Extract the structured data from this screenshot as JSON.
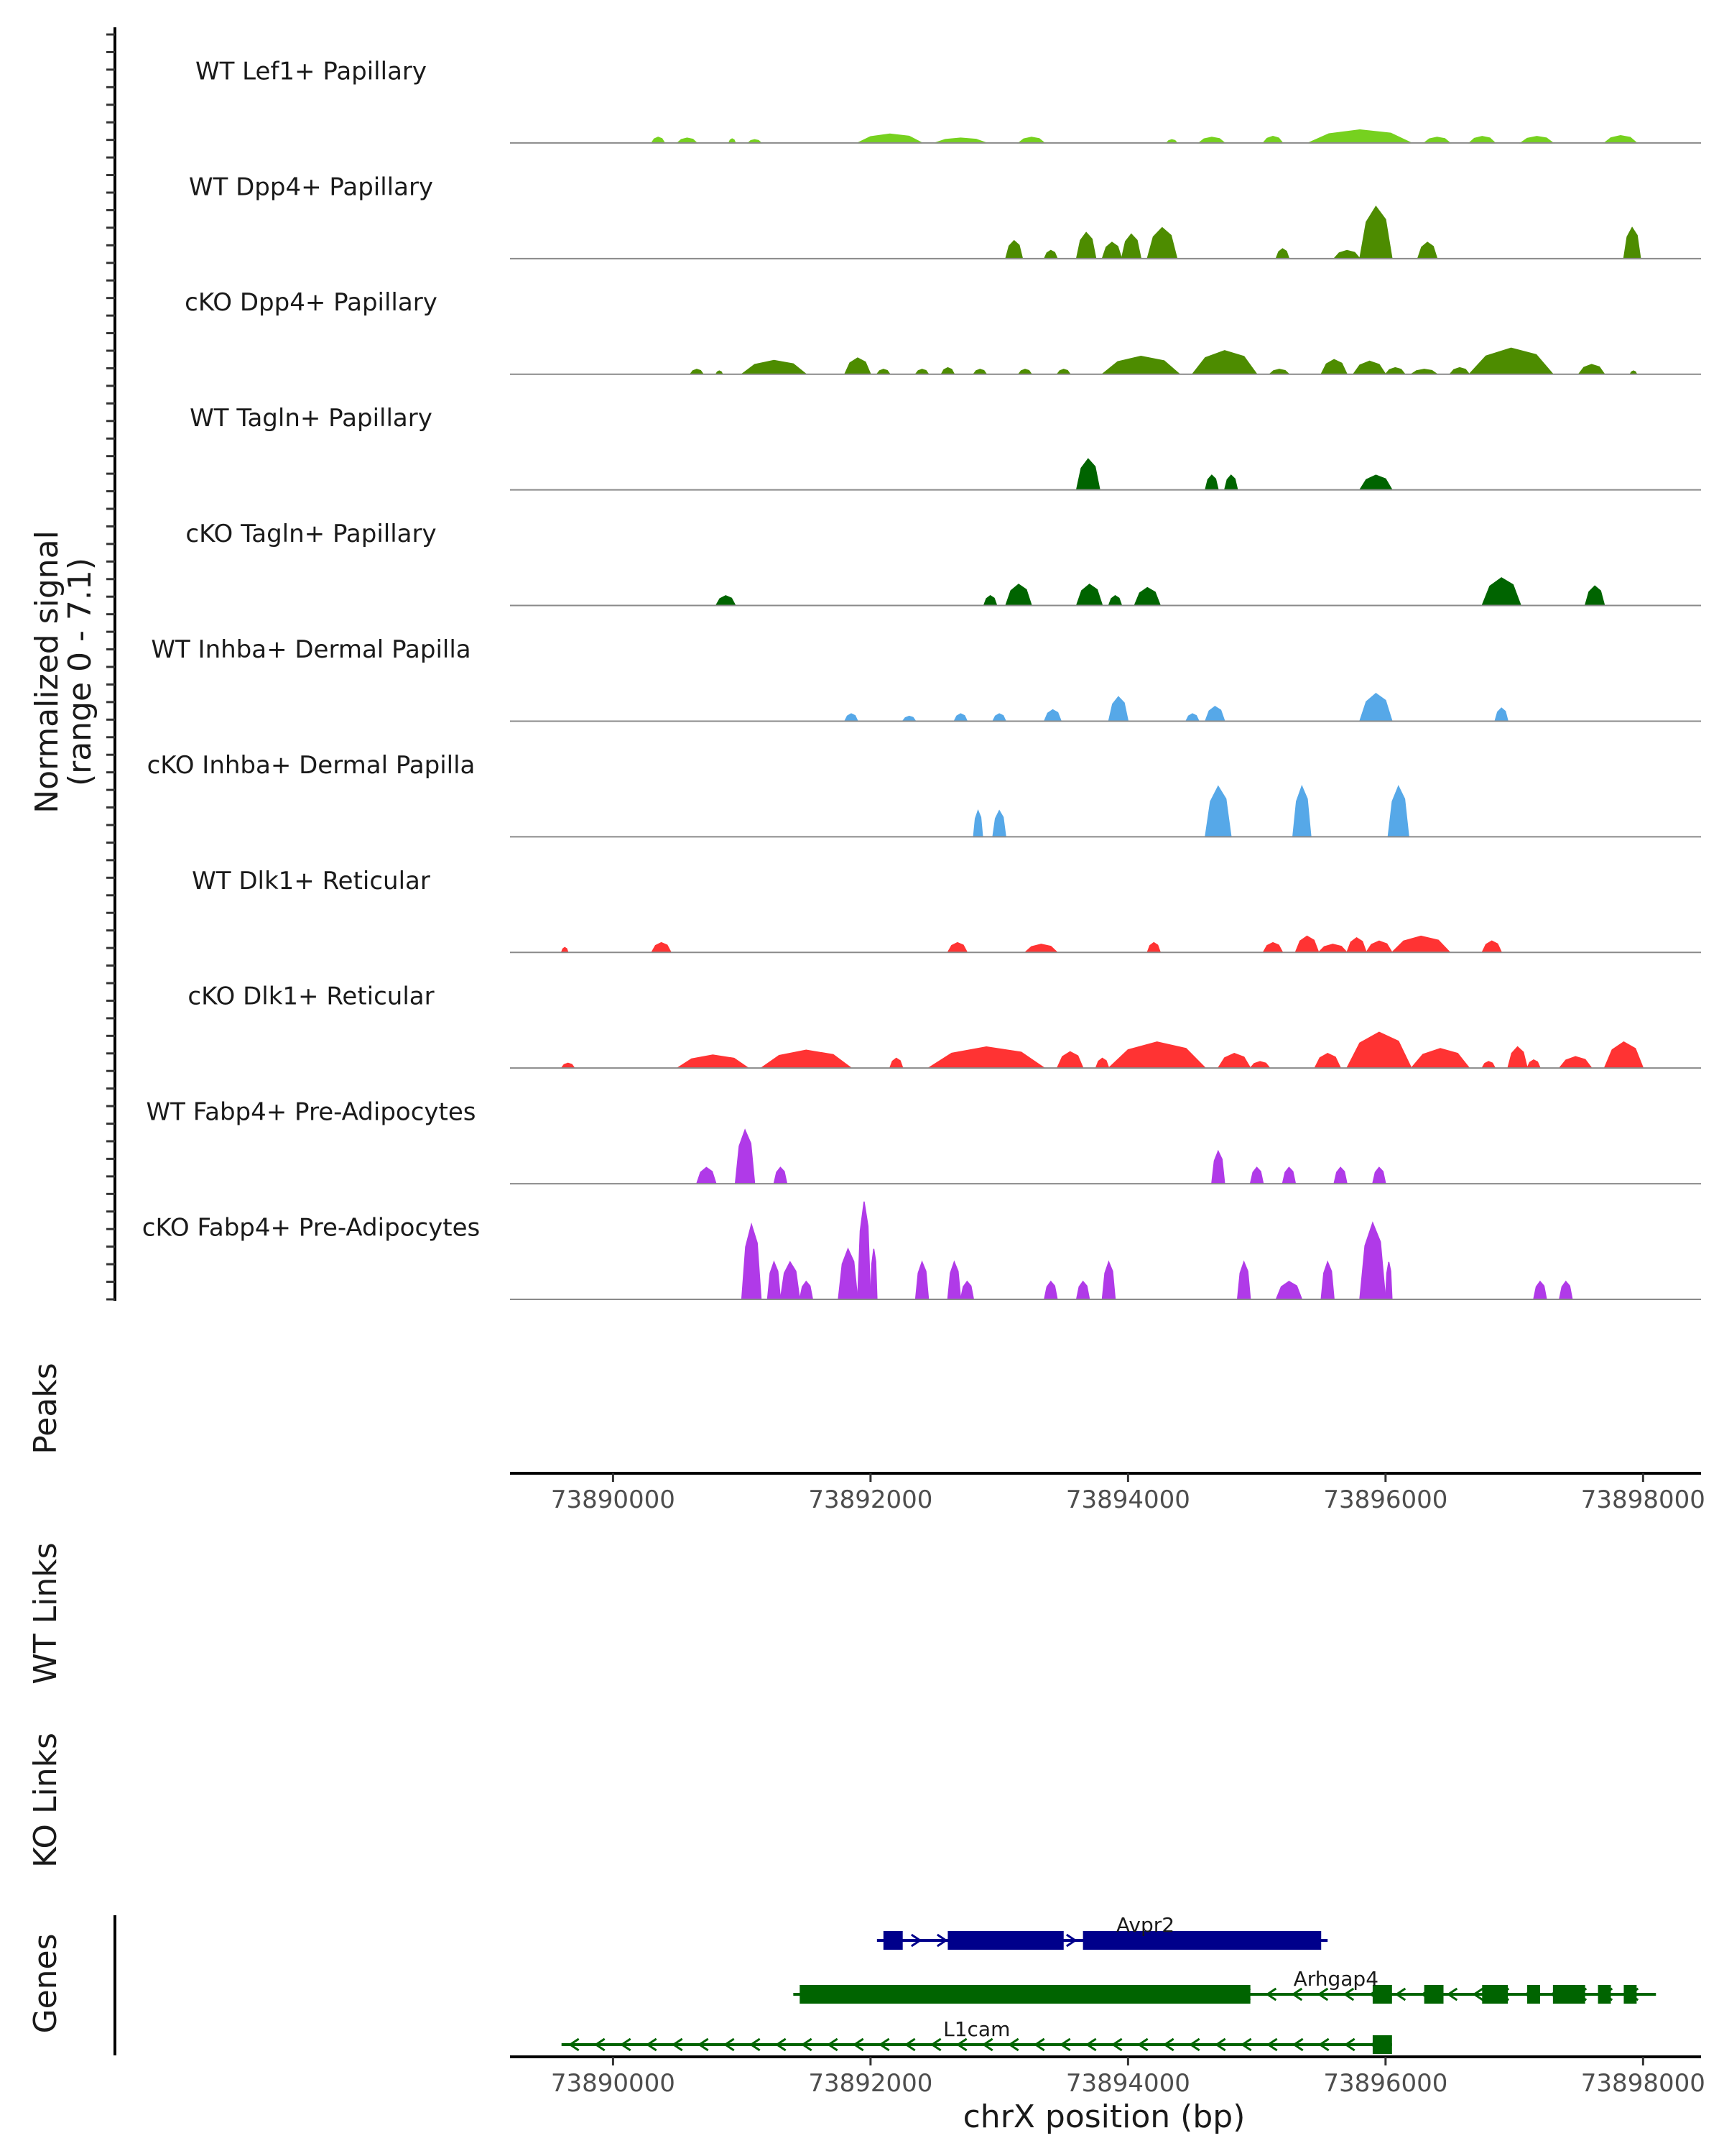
{
  "chart_data": {
    "type": "area",
    "title": "",
    "xlabel": "chrX position (bp)",
    "ylabel": "Normalized signal\n(range 0 - 7.1)",
    "y_range": [
      0,
      7.1
    ],
    "xlim": [
      73889200,
      73898450
    ],
    "x_ticks": [
      73890000,
      73892000,
      73894000,
      73896000,
      73898000
    ],
    "x_tick_labels": [
      "73890000",
      "73892000",
      "73894000",
      "73896000",
      "73898000"
    ],
    "side_labels": {
      "peaks": "Peaks",
      "wt_links": "WT Links",
      "ko_links": "KO Links",
      "genes": "Genes"
    },
    "tracks": [
      {
        "name": "WT Lef1+ Papillary",
        "color": "#76d11f",
        "peaks": [
          [
            73890300,
            73890400,
            0.35
          ],
          [
            73890500,
            73890650,
            0.3
          ],
          [
            73890900,
            73890950,
            0.25
          ],
          [
            73891050,
            73891150,
            0.2
          ],
          [
            73891900,
            73892400,
            0.55
          ],
          [
            73892500,
            73892900,
            0.3
          ],
          [
            73893150,
            73893350,
            0.35
          ],
          [
            73894300,
            73894380,
            0.2
          ],
          [
            73894550,
            73894750,
            0.35
          ],
          [
            73895050,
            73895200,
            0.4
          ],
          [
            73895400,
            73896200,
            0.8
          ],
          [
            73896300,
            73896500,
            0.35
          ],
          [
            73896650,
            73896850,
            0.4
          ],
          [
            73897050,
            73897300,
            0.4
          ],
          [
            73897700,
            73897950,
            0.45
          ]
        ]
      },
      {
        "name": "WT Dpp4+ Papillary",
        "color": "#4d8c00",
        "peaks": [
          [
            73893050,
            73893180,
            1.1
          ],
          [
            73893350,
            73893450,
            0.5
          ],
          [
            73893600,
            73893750,
            1.6
          ],
          [
            73893800,
            73893950,
            1.0
          ],
          [
            73893950,
            73894100,
            1.5
          ],
          [
            73894150,
            73894380,
            1.9
          ],
          [
            73895150,
            73895250,
            0.6
          ],
          [
            73895600,
            73895800,
            0.5
          ],
          [
            73895800,
            73896050,
            3.2
          ],
          [
            73896250,
            73896400,
            1.0
          ],
          [
            73897850,
            73897980,
            1.9
          ]
        ]
      },
      {
        "name": "cKO Dpp4+ Papillary",
        "color": "#4d8c00",
        "peaks": [
          [
            73890600,
            73890700,
            0.3
          ],
          [
            73890800,
            73890850,
            0.2
          ],
          [
            73891000,
            73891500,
            0.85
          ],
          [
            73891800,
            73892000,
            1.0
          ],
          [
            73892050,
            73892150,
            0.3
          ],
          [
            73892350,
            73892450,
            0.3
          ],
          [
            73892550,
            73892650,
            0.4
          ],
          [
            73892800,
            73892900,
            0.3
          ],
          [
            73893150,
            73893250,
            0.3
          ],
          [
            73893450,
            73893550,
            0.3
          ],
          [
            73893800,
            73894400,
            1.1
          ],
          [
            73894500,
            73895000,
            1.45
          ],
          [
            73895100,
            73895250,
            0.3
          ],
          [
            73895500,
            73895700,
            0.9
          ],
          [
            73895750,
            73896000,
            0.8
          ],
          [
            73896000,
            73896150,
            0.4
          ],
          [
            73896200,
            73896400,
            0.3
          ],
          [
            73896500,
            73896650,
            0.4
          ],
          [
            73896650,
            73897300,
            1.6
          ],
          [
            73897500,
            73897700,
            0.6
          ],
          [
            73897900,
            73897950,
            0.2
          ]
        ]
      },
      {
        "name": "WT Tagln+ Papillary",
        "color": "#006400",
        "peaks": [
          [
            73893600,
            73893780,
            1.9
          ],
          [
            73894600,
            73894700,
            0.9
          ],
          [
            73894750,
            73894850,
            0.9
          ],
          [
            73895800,
            73896050,
            0.9
          ]
        ]
      },
      {
        "name": "cKO Tagln+ Papillary",
        "color": "#006400",
        "peaks": [
          [
            73890800,
            73890950,
            0.6
          ],
          [
            73892880,
            73892980,
            0.6
          ],
          [
            73893050,
            73893250,
            1.3
          ],
          [
            73893600,
            73893800,
            1.3
          ],
          [
            73893850,
            73893950,
            0.6
          ],
          [
            73894050,
            73894250,
            1.1
          ],
          [
            73896750,
            73897050,
            1.7
          ],
          [
            73897550,
            73897700,
            1.2
          ]
        ]
      },
      {
        "name": "WT Inhba+ Dermal Papilla",
        "color": "#56a8e8",
        "peaks": [
          [
            73891800,
            73891900,
            0.45
          ],
          [
            73892250,
            73892350,
            0.3
          ],
          [
            73892650,
            73892750,
            0.45
          ],
          [
            73892950,
            73893050,
            0.45
          ],
          [
            73893350,
            73893480,
            0.7
          ],
          [
            73893850,
            73894000,
            1.5
          ],
          [
            73894450,
            73894550,
            0.45
          ],
          [
            73894600,
            73894750,
            0.9
          ],
          [
            73895800,
            73896050,
            1.7
          ],
          [
            73896850,
            73896950,
            0.8
          ]
        ]
      },
      {
        "name": "cKO Inhba+ Dermal Papilla",
        "color": "#56a8e8",
        "peaks": [
          [
            73892800,
            73892870,
            1.6
          ],
          [
            73892950,
            73893050,
            1.6
          ],
          [
            73894600,
            73894800,
            3.1
          ],
          [
            73895280,
            73895420,
            3.1
          ],
          [
            73896020,
            73896180,
            3.1
          ]
        ]
      },
      {
        "name": "WT Dlk1+ Reticular",
        "color": "#ff3333",
        "peaks": [
          [
            73889600,
            73889650,
            0.3
          ],
          [
            73890300,
            73890450,
            0.6
          ],
          [
            73892600,
            73892750,
            0.6
          ],
          [
            73893200,
            73893450,
            0.5
          ],
          [
            73894150,
            73894250,
            0.6
          ],
          [
            73895050,
            73895200,
            0.6
          ],
          [
            73895300,
            73895480,
            1.0
          ],
          [
            73895480,
            73895700,
            0.5
          ],
          [
            73895700,
            73895850,
            0.9
          ],
          [
            73895850,
            73896050,
            0.7
          ],
          [
            73896050,
            73896500,
            1.0
          ],
          [
            73896750,
            73896900,
            0.7
          ]
        ]
      },
      {
        "name": "cKO Dlk1+ Reticular",
        "color": "#ff3333",
        "peaks": [
          [
            73889600,
            73889700,
            0.3
          ],
          [
            73890500,
            73891050,
            0.8
          ],
          [
            73891150,
            73891850,
            1.1
          ],
          [
            73892150,
            73892250,
            0.6
          ],
          [
            73892450,
            73893350,
            1.3
          ],
          [
            73893450,
            73893650,
            1.0
          ],
          [
            73893750,
            73893850,
            0.6
          ],
          [
            73893850,
            73894600,
            1.6
          ],
          [
            73894700,
            73894950,
            0.9
          ],
          [
            73894950,
            73895100,
            0.4
          ],
          [
            73895450,
            73895650,
            0.9
          ],
          [
            73895700,
            73896200,
            2.2
          ],
          [
            73896200,
            73896650,
            1.2
          ],
          [
            73896750,
            73896850,
            0.4
          ],
          [
            73896950,
            73897100,
            1.3
          ],
          [
            73897100,
            73897200,
            0.5
          ],
          [
            73897350,
            73897600,
            0.7
          ],
          [
            73897700,
            73898000,
            1.6
          ]
        ]
      },
      {
        "name": "WT Fabp4+ Pre-Adipocytes",
        "color": "#b03ae8",
        "peaks": [
          [
            73890650,
            73890800,
            1.0
          ],
          [
            73890950,
            73891100,
            3.3
          ],
          [
            73891250,
            73891350,
            1.0
          ],
          [
            73894650,
            73894750,
            2.0
          ],
          [
            73894950,
            73895050,
            1.0
          ],
          [
            73895200,
            73895300,
            1.0
          ],
          [
            73895600,
            73895700,
            1.0
          ],
          [
            73895900,
            73896000,
            1.0
          ]
        ]
      },
      {
        "name": "cKO Fabp4+ Pre-Adipocytes",
        "color": "#b03ae8",
        "peaks": [
          [
            73891000,
            73891150,
            4.6
          ],
          [
            73891200,
            73891300,
            2.3
          ],
          [
            73891300,
            73891450,
            2.3
          ],
          [
            73891450,
            73891550,
            1.1
          ],
          [
            73891750,
            73891900,
            3.1
          ],
          [
            73891900,
            73892000,
            6.0
          ],
          [
            73892000,
            73892050,
            3.1
          ],
          [
            73892350,
            73892450,
            2.3
          ],
          [
            73892600,
            73892700,
            2.3
          ],
          [
            73892700,
            73892800,
            1.1
          ],
          [
            73893350,
            73893450,
            1.1
          ],
          [
            73893600,
            73893700,
            1.1
          ],
          [
            73893800,
            73893900,
            2.3
          ],
          [
            73894850,
            73894950,
            2.3
          ],
          [
            73895150,
            73895350,
            1.1
          ],
          [
            73895500,
            73895600,
            2.3
          ],
          [
            73895800,
            73896000,
            4.7
          ],
          [
            73896000,
            73896050,
            2.3
          ],
          [
            73897150,
            73897250,
            1.1
          ],
          [
            73897350,
            73897450,
            1.1
          ]
        ]
      }
    ],
    "genes": [
      {
        "name": "Avpr2",
        "strand": "+",
        "color": "#00008b",
        "start": 73892050,
        "end": 73895550,
        "exons": [
          [
            73892100,
            73892250
          ],
          [
            73892600,
            73893500
          ],
          [
            73893650,
            73895500
          ]
        ]
      },
      {
        "name": "Arhgap4",
        "strand": "-",
        "color": "#006400",
        "start": 73891400,
        "end": 73898100,
        "exons": [
          [
            73891450,
            73894950
          ],
          [
            73895900,
            73896050
          ],
          [
            73896300,
            73896450
          ],
          [
            73896750,
            73896950
          ],
          [
            73897100,
            73897200
          ],
          [
            73897300,
            73897550
          ],
          [
            73897650,
            73897750
          ],
          [
            73897850,
            73897950
          ]
        ]
      },
      {
        "name": "L1cam",
        "strand": "-",
        "color": "#006400",
        "start": 73889600,
        "end": 73896050,
        "exons": [
          [
            73895900,
            73896050
          ]
        ]
      }
    ]
  }
}
